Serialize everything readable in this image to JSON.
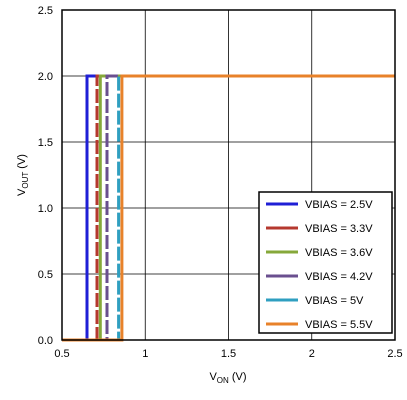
{
  "chart_data": {
    "type": "line",
    "xlabel": {
      "main": "V",
      "sub": "ON",
      "unit": "(V)"
    },
    "ylabel": {
      "main": "V",
      "sub": "OUT",
      "unit": "(V)"
    },
    "xlim": [
      0.5,
      2.5
    ],
    "ylim": [
      0.0,
      2.5
    ],
    "x_ticks": [
      "0.5",
      "1",
      "1.5",
      "2",
      "2.5"
    ],
    "y_ticks": [
      "0.0",
      "0.5",
      "1.0",
      "1.5",
      "2.0",
      "2.5"
    ],
    "grid": true,
    "legend_position": "bottom-right",
    "series": [
      {
        "name": "VBIAS = 2.5V",
        "color": "#1f1fd6",
        "dash": false,
        "x": [
          0.5,
          0.65,
          0.65,
          2.5
        ],
        "y": [
          0.0,
          0.0,
          2.0,
          2.0
        ]
      },
      {
        "name": "VBIAS = 3.3V",
        "color": "#b5382f",
        "dash": true,
        "x": [
          0.5,
          0.71,
          0.71,
          2.5
        ],
        "y": [
          0.0,
          0.0,
          2.0,
          2.0
        ]
      },
      {
        "name": "VBIAS = 3.6V",
        "color": "#86a83a",
        "dash": false,
        "x": [
          0.5,
          0.73,
          0.73,
          2.5
        ],
        "y": [
          0.0,
          0.0,
          2.0,
          2.0
        ]
      },
      {
        "name": "VBIAS = 4.2V",
        "color": "#6a4f8f",
        "dash": true,
        "x": [
          0.5,
          0.77,
          0.77,
          2.5
        ],
        "y": [
          0.0,
          0.0,
          2.0,
          2.0
        ]
      },
      {
        "name": "VBIAS = 5V",
        "color": "#2f9fc0",
        "dash": true,
        "x": [
          0.5,
          0.84,
          0.84,
          2.5
        ],
        "y": [
          0.0,
          0.0,
          2.0,
          2.0
        ]
      },
      {
        "name": "VBIAS = 5.5V",
        "color": "#e8822a",
        "dash": false,
        "x": [
          0.5,
          0.86,
          0.86,
          2.5
        ],
        "y": [
          0.0,
          0.0,
          2.0,
          2.0
        ]
      }
    ]
  }
}
